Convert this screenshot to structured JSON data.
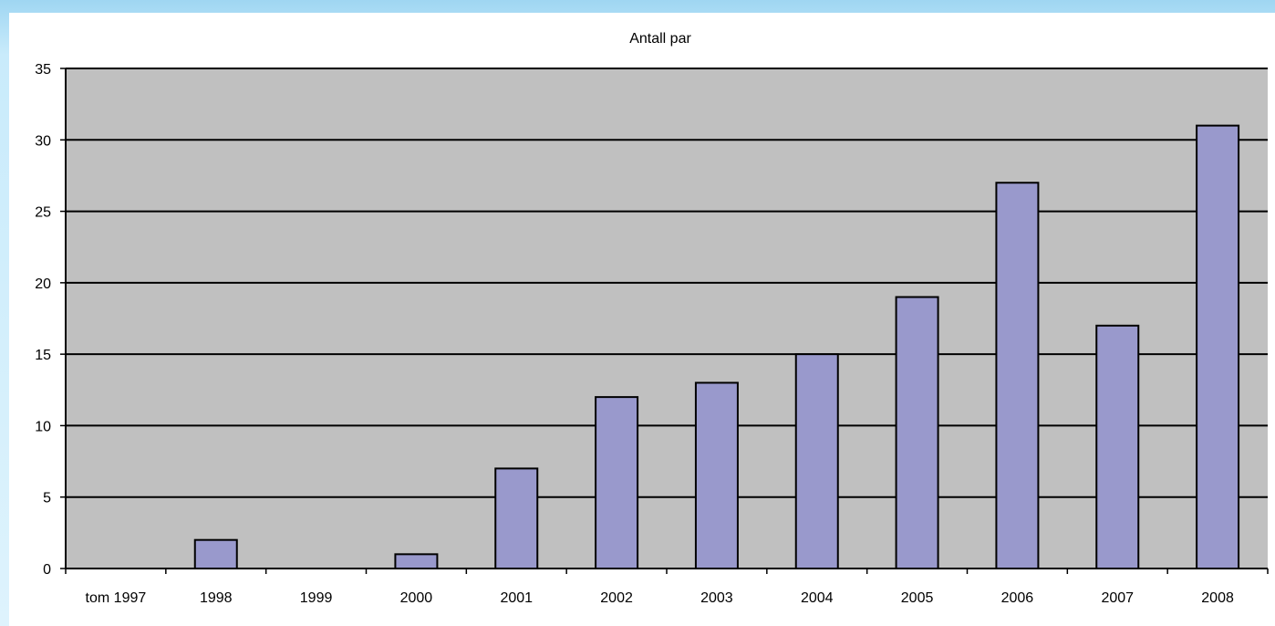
{
  "chart_data": {
    "type": "bar",
    "title": "Antall par",
    "xlabel": "",
    "ylabel": "",
    "categories": [
      "tom 1997",
      "1998",
      "1999",
      "2000",
      "2001",
      "2002",
      "2003",
      "2004",
      "2005",
      "2006",
      "2007",
      "2008"
    ],
    "values": [
      0,
      2,
      0,
      1,
      7,
      12,
      13,
      15,
      19,
      27,
      17,
      31
    ],
    "ylim": [
      0,
      35
    ],
    "yticks": [
      "0",
      "5",
      "10",
      "15",
      "20",
      "25",
      "30",
      "35"
    ],
    "grid": true,
    "legend": "none",
    "colors": {
      "bar": "#9999cc",
      "plot_background": "#c0c0c0",
      "page_background": "#ffffff"
    }
  }
}
